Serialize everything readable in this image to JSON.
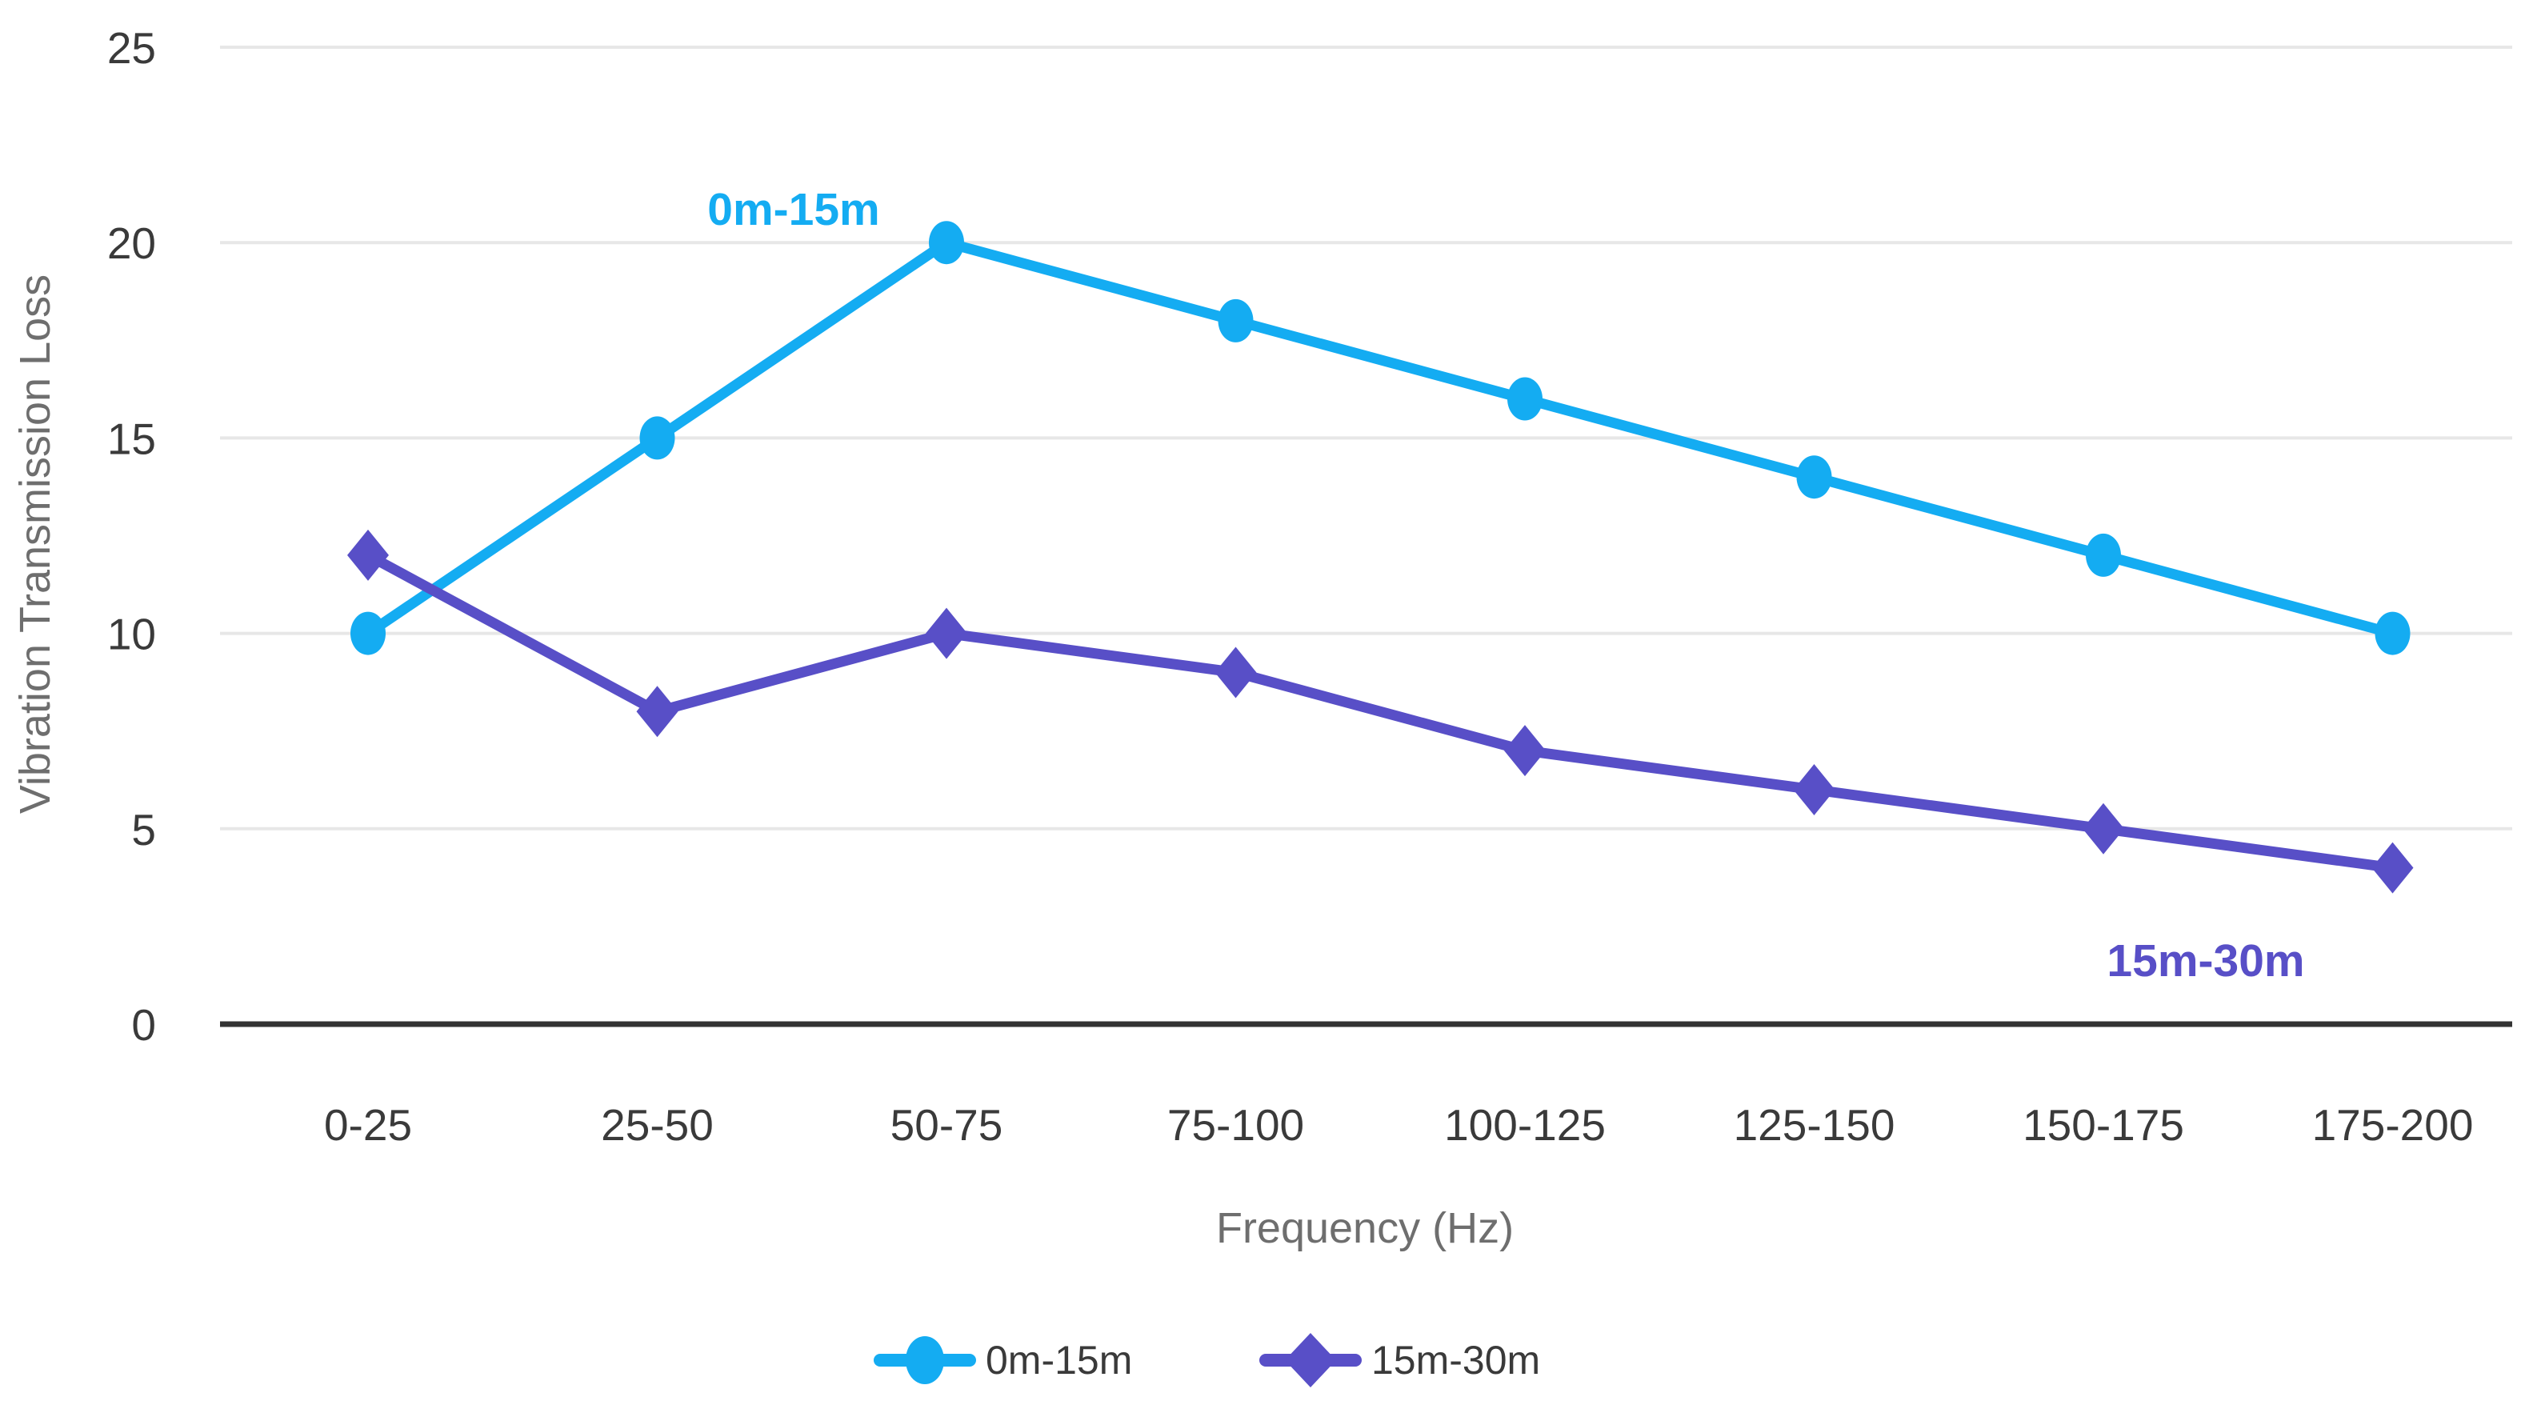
{
  "chart_data": {
    "type": "line",
    "title": "",
    "categories": [
      "0-25",
      "25-50",
      "50-75",
      "75-100",
      "100-125",
      "125-150",
      "150-175",
      "175-200"
    ],
    "series": [
      {
        "name": "0m-15m",
        "color": "#14acf2",
        "marker": "circle",
        "values": [
          10,
          15,
          20,
          18,
          16,
          14,
          12,
          10
        ]
      },
      {
        "name": "15m-30m",
        "color": "#584fc7",
        "marker": "diamond",
        "values": [
          12,
          8,
          10,
          9,
          7,
          6,
          5,
          4
        ]
      }
    ],
    "xlabel": "Frequency (Hz)",
    "ylabel": "Vibration Transmission Loss",
    "ylim": [
      0,
      25
    ],
    "yticks": [
      0,
      5,
      10,
      15,
      20,
      25
    ],
    "grid": true,
    "grid_color": "#e7e7e7",
    "axis_line_color": "#333333",
    "legend_position": "bottom",
    "annotations": [
      {
        "text": "0m-15m",
        "series_index": 0
      },
      {
        "text": "15m-30m",
        "series_index": 1
      }
    ]
  }
}
